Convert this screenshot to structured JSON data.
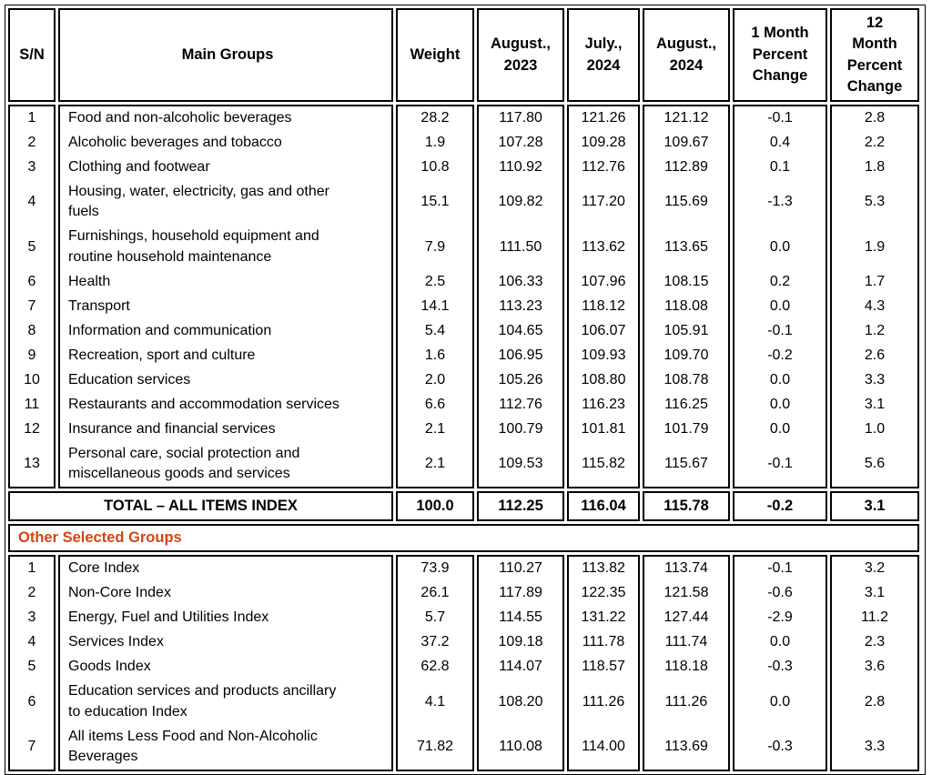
{
  "colors": {
    "section_title_orange": "#D8440F",
    "border_black": "#000000"
  },
  "header": {
    "columns": [
      "S/N",
      "Main Groups",
      "Weight",
      "August.,\n2023",
      "July.,\n2024",
      "August.,\n2024",
      "1 Month\nPercent\nChange",
      "12\nMonth\nPercent\nChange"
    ]
  },
  "main_groups": {
    "rows": [
      {
        "sn": "1",
        "name": "Food and non-alcoholic beverages",
        "weight": "28.2",
        "aug_2023": "117.80",
        "jul_2024": "121.26",
        "aug_2024": "121.12",
        "change_1m": "-0.1",
        "change_12m": "2.8"
      },
      {
        "sn": "2",
        "name": "Alcoholic beverages and tobacco",
        "weight": "1.9",
        "aug_2023": "107.28",
        "jul_2024": "109.28",
        "aug_2024": "109.67",
        "change_1m": "0.4",
        "change_12m": "2.2"
      },
      {
        "sn": "3",
        "name": "Clothing and footwear",
        "weight": "10.8",
        "aug_2023": "110.92",
        "jul_2024": "112.76",
        "aug_2024": "112.89",
        "change_1m": "0.1",
        "change_12m": "1.8"
      },
      {
        "sn": "4",
        "name": "Housing, water, electricity, gas and other\nfuels",
        "weight": "15.1",
        "aug_2023": "109.82",
        "jul_2024": "117.20",
        "aug_2024": "115.69",
        "change_1m": "-1.3",
        "change_12m": "5.3"
      },
      {
        "sn": "5",
        "name": "Furnishings, household equipment and\nroutine household maintenance",
        "weight": "7.9",
        "aug_2023": "111.50",
        "jul_2024": "113.62",
        "aug_2024": "113.65",
        "change_1m": "0.0",
        "change_12m": "1.9"
      },
      {
        "sn": "6",
        "name": "Health",
        "weight": "2.5",
        "aug_2023": "106.33",
        "jul_2024": "107.96",
        "aug_2024": "108.15",
        "change_1m": "0.2",
        "change_12m": "1.7"
      },
      {
        "sn": "7",
        "name": "Transport",
        "weight": "14.1",
        "aug_2023": "113.23",
        "jul_2024": "118.12",
        "aug_2024": "118.08",
        "change_1m": "0.0",
        "change_12m": "4.3"
      },
      {
        "sn": "8",
        "name": "Information and communication",
        "weight": "5.4",
        "aug_2023": "104.65",
        "jul_2024": "106.07",
        "aug_2024": "105.91",
        "change_1m": "-0.1",
        "change_12m": "1.2"
      },
      {
        "sn": "9",
        "name": "Recreation, sport and culture",
        "weight": "1.6",
        "aug_2023": "106.95",
        "jul_2024": "109.93",
        "aug_2024": "109.70",
        "change_1m": "-0.2",
        "change_12m": "2.6"
      },
      {
        "sn": "10",
        "name": "Education services",
        "weight": "2.0",
        "aug_2023": "105.26",
        "jul_2024": "108.80",
        "aug_2024": "108.78",
        "change_1m": "0.0",
        "change_12m": "3.3"
      },
      {
        "sn": "11",
        "name": "Restaurants and accommodation services",
        "weight": "6.6",
        "aug_2023": "112.76",
        "jul_2024": "116.23",
        "aug_2024": "116.25",
        "change_1m": "0.0",
        "change_12m": "3.1"
      },
      {
        "sn": "12",
        "name": "Insurance and financial services",
        "weight": "2.1",
        "aug_2023": "100.79",
        "jul_2024": "101.81",
        "aug_2024": "101.79",
        "change_1m": "0.0",
        "change_12m": "1.0"
      },
      {
        "sn": "13",
        "name": "Personal care, social protection and\nmiscellaneous goods and services",
        "weight": "2.1",
        "aug_2023": "109.53",
        "jul_2024": "115.82",
        "aug_2024": "115.67",
        "change_1m": "-0.1",
        "change_12m": "5.6"
      }
    ]
  },
  "total_row": {
    "label": "TOTAL – ALL ITEMS INDEX",
    "weight": "100.0",
    "aug_2023": "112.25",
    "jul_2024": "116.04",
    "aug_2024": "115.78",
    "change_1m": "-0.2",
    "change_12m": "3.1"
  },
  "other_groups": {
    "section_title": "Other Selected Groups",
    "rows": [
      {
        "sn": "1",
        "name": "Core Index",
        "weight": "73.9",
        "aug_2023": "110.27",
        "jul_2024": "113.82",
        "aug_2024": "113.74",
        "change_1m": "-0.1",
        "change_12m": "3.2"
      },
      {
        "sn": "2",
        "name": "Non-Core Index",
        "weight": "26.1",
        "aug_2023": "117.89",
        "jul_2024": "122.35",
        "aug_2024": "121.58",
        "change_1m": "-0.6",
        "change_12m": "3.1"
      },
      {
        "sn": "3",
        "name": "Energy, Fuel and Utilities Index",
        "weight": "5.7",
        "aug_2023": "114.55",
        "jul_2024": "131.22",
        "aug_2024": "127.44",
        "change_1m": "-2.9",
        "change_12m": "11.2"
      },
      {
        "sn": "4",
        "name": "Services Index",
        "weight": "37.2",
        "aug_2023": "109.18",
        "jul_2024": "111.78",
        "aug_2024": "111.74",
        "change_1m": "0.0",
        "change_12m": "2.3"
      },
      {
        "sn": "5",
        "name": "Goods Index",
        "weight": "62.8",
        "aug_2023": "114.07",
        "jul_2024": "118.57",
        "aug_2024": "118.18",
        "change_1m": "-0.3",
        "change_12m": "3.6"
      },
      {
        "sn": "6",
        "name": "Education services and products ancillary\nto education Index",
        "weight": "4.1",
        "aug_2023": "108.20",
        "jul_2024": "111.26",
        "aug_2024": "111.26",
        "change_1m": "0.0",
        "change_12m": "2.8"
      },
      {
        "sn": "7",
        "name": "All items Less Food and Non-Alcoholic\nBeverages",
        "weight": "71.82",
        "aug_2023": "110.08",
        "jul_2024": "114.00",
        "aug_2024": "113.69",
        "change_1m": "-0.3",
        "change_12m": "3.3"
      }
    ]
  }
}
